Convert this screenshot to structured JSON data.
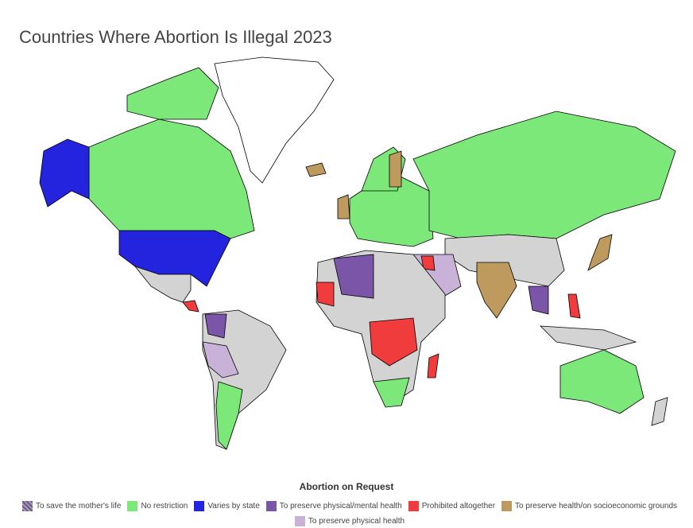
{
  "title": "Countries Where Abortion Is Illegal 2023",
  "legend": {
    "title": "Abortion on Request",
    "items": [
      {
        "label": "To save the mother's life",
        "color": "#8a7aa0",
        "pattern": true
      },
      {
        "label": "No restriction",
        "color": "#7de87a"
      },
      {
        "label": "Varies by state",
        "color": "#2424de"
      },
      {
        "label": "To preserve physical/mental health",
        "color": "#7b55a8"
      },
      {
        "label": "Prohibited altogether",
        "color": "#f03c3c"
      },
      {
        "label": "To preserve health/on socioeconomic grounds",
        "color": "#bf9a5e"
      },
      {
        "label": "To preserve physical health",
        "color": "#c8b2d8"
      }
    ]
  },
  "colors": {
    "other": "#d3d3d3",
    "greenland": "#ffffff"
  }
}
